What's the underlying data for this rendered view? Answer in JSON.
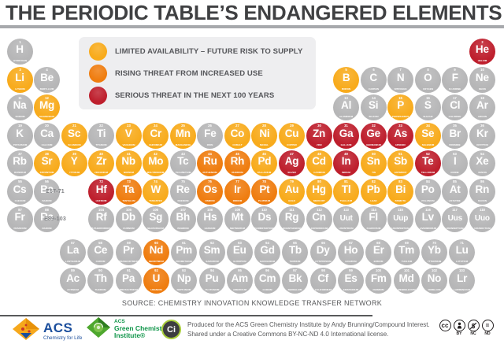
{
  "title": "THE PERIODIC TABLE’S ENDANGERED ELEMENTS",
  "legend": {
    "items": [
      {
        "key": "y",
        "label": "LIMITED AVAILABILITY – FUTURE RISK TO SUPPLY"
      },
      {
        "key": "o",
        "label": "RISING THREAT FROM INCREASED USE"
      },
      {
        "key": "r",
        "label": "SERIOUS THREAT IN THE NEXT 100 YEARS"
      }
    ]
  },
  "colors": {
    "g": "#b6b6b7",
    "y": "#f8ab1c",
    "o": "#ef7d10",
    "r": "#be1f2d"
  },
  "table": {
    "gap_labels": [
      {
        "text": "E57-71",
        "row": 6
      },
      {
        "text": "E89-103",
        "row": 7
      }
    ],
    "element_fields": [
      "symbol",
      "number",
      "name",
      "row",
      "col",
      "category"
    ],
    "elements": [
      [
        "H",
        1,
        "HYDROGEN",
        1,
        1,
        "g"
      ],
      [
        "He",
        2,
        "HELIUM",
        1,
        18,
        "r"
      ],
      [
        "Li",
        3,
        "LITHIUM",
        2,
        1,
        "y"
      ],
      [
        "Be",
        4,
        "BERYLLIUM",
        2,
        2,
        "g"
      ],
      [
        "B",
        5,
        "BORON",
        2,
        13,
        "y"
      ],
      [
        "C",
        6,
        "CARBON",
        2,
        14,
        "g"
      ],
      [
        "N",
        7,
        "NITROGEN",
        2,
        15,
        "g"
      ],
      [
        "O",
        8,
        "OXYGEN",
        2,
        16,
        "g"
      ],
      [
        "F",
        9,
        "FLUORINE",
        2,
        17,
        "g"
      ],
      [
        "Ne",
        10,
        "NEON",
        2,
        18,
        "g"
      ],
      [
        "Na",
        11,
        "SODIUM",
        3,
        1,
        "g"
      ],
      [
        "Mg",
        12,
        "MAGNESIUM",
        3,
        2,
        "y"
      ],
      [
        "Al",
        13,
        "ALUMINIUM",
        3,
        13,
        "g"
      ],
      [
        "Si",
        14,
        "SILICON",
        3,
        14,
        "g"
      ],
      [
        "P",
        15,
        "PHOSPHORUS",
        3,
        15,
        "y"
      ],
      [
        "S",
        16,
        "SULFUR",
        3,
        16,
        "g"
      ],
      [
        "Cl",
        17,
        "CHLORINE",
        3,
        17,
        "g"
      ],
      [
        "Ar",
        18,
        "ARGON",
        3,
        18,
        "g"
      ],
      [
        "K",
        19,
        "POTASSIUM",
        4,
        1,
        "g"
      ],
      [
        "Ca",
        20,
        "CALCIUM",
        4,
        2,
        "g"
      ],
      [
        "Sc",
        21,
        "SCANDIUM",
        4,
        3,
        "y"
      ],
      [
        "Ti",
        22,
        "TITANIUM",
        4,
        4,
        "g"
      ],
      [
        "V",
        23,
        "VANADIUM",
        4,
        5,
        "y"
      ],
      [
        "Cr",
        24,
        "CHROMIUM",
        4,
        6,
        "y"
      ],
      [
        "Mn",
        25,
        "MANGANESE",
        4,
        7,
        "y"
      ],
      [
        "Fe",
        26,
        "IRON",
        4,
        8,
        "g"
      ],
      [
        "Co",
        27,
        "COBALT",
        4,
        9,
        "y"
      ],
      [
        "Ni",
        28,
        "NICKEL",
        4,
        10,
        "y"
      ],
      [
        "Cu",
        29,
        "COPPER",
        4,
        11,
        "y"
      ],
      [
        "Zn",
        30,
        "ZINC",
        4,
        12,
        "r"
      ],
      [
        "Ga",
        31,
        "GALLIUM",
        4,
        13,
        "r"
      ],
      [
        "Ge",
        32,
        "GERMANIUM",
        4,
        14,
        "r"
      ],
      [
        "As",
        33,
        "ARSENIC",
        4,
        15,
        "r"
      ],
      [
        "Se",
        34,
        "SELENIUM",
        4,
        16,
        "y"
      ],
      [
        "Br",
        35,
        "BROMINE",
        4,
        17,
        "g"
      ],
      [
        "Kr",
        36,
        "KRYPTON",
        4,
        18,
        "g"
      ],
      [
        "Rb",
        37,
        "RUBIDIUM",
        5,
        1,
        "g"
      ],
      [
        "Sr",
        38,
        "STRONTIUM",
        5,
        2,
        "y"
      ],
      [
        "Y",
        39,
        "YTTRIUM",
        5,
        3,
        "y"
      ],
      [
        "Zr",
        40,
        "ZIRCONIUM",
        5,
        4,
        "y"
      ],
      [
        "Nb",
        41,
        "NIOBIUM",
        5,
        5,
        "y"
      ],
      [
        "Mo",
        42,
        "MOLYBDENUM",
        5,
        6,
        "y"
      ],
      [
        "Tc",
        43,
        "TECHNETIUM",
        5,
        7,
        "g"
      ],
      [
        "Ru",
        44,
        "RUTHENIUM",
        5,
        8,
        "o"
      ],
      [
        "Rh",
        45,
        "RHODIUM",
        5,
        9,
        "o"
      ],
      [
        "Pd",
        46,
        "PALLADIUM",
        5,
        10,
        "y"
      ],
      [
        "Ag",
        47,
        "SILVER",
        5,
        11,
        "r"
      ],
      [
        "Cd",
        48,
        "CADMIUM",
        5,
        12,
        "y"
      ],
      [
        "In",
        49,
        "INDIUM",
        5,
        13,
        "r"
      ],
      [
        "Sn",
        50,
        "TIN",
        5,
        14,
        "y"
      ],
      [
        "Sb",
        51,
        "ANTIMONY",
        5,
        15,
        "y"
      ],
      [
        "Te",
        52,
        "TELLURIUM",
        5,
        16,
        "r"
      ],
      [
        "I",
        53,
        "IODINE",
        5,
        17,
        "g"
      ],
      [
        "Xe",
        54,
        "XENON",
        5,
        18,
        "g"
      ],
      [
        "Cs",
        55,
        "CAESIUM",
        6,
        1,
        "g"
      ],
      [
        "Ba",
        56,
        "BARIUM",
        6,
        2,
        "g"
      ],
      [
        "Hf",
        72,
        "HAFNIUM",
        6,
        4,
        "r"
      ],
      [
        "Ta",
        73,
        "TANTALUM",
        6,
        5,
        "o"
      ],
      [
        "W",
        74,
        "TUNGSTEN",
        6,
        6,
        "y"
      ],
      [
        "Re",
        75,
        "RHENIUM",
        6,
        7,
        "g"
      ],
      [
        "Os",
        76,
        "OSMIUM",
        6,
        8,
        "o"
      ],
      [
        "Ir",
        77,
        "IRIDIUM",
        6,
        9,
        "o"
      ],
      [
        "Pt",
        78,
        "PLATINUM",
        6,
        10,
        "o"
      ],
      [
        "Au",
        79,
        "GOLD",
        6,
        11,
        "y"
      ],
      [
        "Hg",
        80,
        "MERCURY",
        6,
        12,
        "y"
      ],
      [
        "Tl",
        81,
        "THALLIUM",
        6,
        13,
        "y"
      ],
      [
        "Pb",
        82,
        "LEAD",
        6,
        14,
        "y"
      ],
      [
        "Bi",
        83,
        "BISMUTH",
        6,
        15,
        "y"
      ],
      [
        "Po",
        84,
        "POLONIUM",
        6,
        16,
        "g"
      ],
      [
        "At",
        85,
        "ASTATINE",
        6,
        17,
        "g"
      ],
      [
        "Rn",
        86,
        "RADON",
        6,
        18,
        "g"
      ],
      [
        "Fr",
        87,
        "FRANCIUM",
        7,
        1,
        "g"
      ],
      [
        "Ra",
        88,
        "RADIUM",
        7,
        2,
        "g"
      ],
      [
        "Rf",
        104,
        "RUTHERFORDIUM",
        7,
        4,
        "g"
      ],
      [
        "Db",
        105,
        "DUBNIUM",
        7,
        5,
        "g"
      ],
      [
        "Sg",
        106,
        "SEABORGIUM",
        7,
        6,
        "g"
      ],
      [
        "Bh",
        107,
        "BOHRIUM",
        7,
        7,
        "g"
      ],
      [
        "Hs",
        108,
        "HASSIUM",
        7,
        8,
        "g"
      ],
      [
        "Mt",
        109,
        "MEITNERIUM",
        7,
        9,
        "g"
      ],
      [
        "Ds",
        110,
        "DARMSTADTIUM",
        7,
        10,
        "g"
      ],
      [
        "Rg",
        111,
        "ROENTGENIUM",
        7,
        11,
        "g"
      ],
      [
        "Cn",
        112,
        "COPERNICIUM",
        7,
        12,
        "g"
      ],
      [
        "Uut",
        113,
        "UNUNTRIUM",
        7,
        13,
        "g"
      ],
      [
        "Fl",
        114,
        "FLEROVIUM",
        7,
        14,
        "g"
      ],
      [
        "Uup",
        115,
        "UNUNPENTIUM",
        7,
        15,
        "g"
      ],
      [
        "Lv",
        116,
        "LIVERMORIUM",
        7,
        16,
        "g"
      ],
      [
        "Uus",
        117,
        "UNUNSEPTIUM",
        7,
        17,
        "g"
      ],
      [
        "Uuo",
        118,
        "UNUNOCTIUM",
        7,
        18,
        "g"
      ],
      [
        "La",
        57,
        "LANTHANUM",
        8,
        1,
        "g"
      ],
      [
        "Ce",
        58,
        "CERIUM",
        8,
        2,
        "g"
      ],
      [
        "Pr",
        59,
        "PRASEODYMIUM",
        8,
        3,
        "g"
      ],
      [
        "Nd",
        60,
        "NEODYMIUM",
        8,
        4,
        "o"
      ],
      [
        "Pm",
        61,
        "PROMETHIUM",
        8,
        5,
        "g"
      ],
      [
        "Sm",
        62,
        "SAMARIUM",
        8,
        6,
        "g"
      ],
      [
        "Eu",
        63,
        "EUROPIUM",
        8,
        7,
        "g"
      ],
      [
        "Gd",
        64,
        "GADOLINIUM",
        8,
        8,
        "g"
      ],
      [
        "Tb",
        65,
        "TERBIUM",
        8,
        9,
        "g"
      ],
      [
        "Dy",
        66,
        "DYSPROSIUM",
        8,
        10,
        "g"
      ],
      [
        "Ho",
        67,
        "HOLMIUM",
        8,
        11,
        "g"
      ],
      [
        "Er",
        68,
        "ERBIUM",
        8,
        12,
        "g"
      ],
      [
        "Tm",
        69,
        "THULIUM",
        8,
        13,
        "g"
      ],
      [
        "Yb",
        70,
        "YTTERBIUM",
        8,
        14,
        "g"
      ],
      [
        "Lu",
        71,
        "LUTETIUM",
        8,
        15,
        "g"
      ],
      [
        "Ac",
        89,
        "ACTINIUM",
        9,
        1,
        "g"
      ],
      [
        "Th",
        90,
        "THORIUM",
        9,
        2,
        "g"
      ],
      [
        "Pa",
        91,
        "PROTACTINIUM",
        9,
        3,
        "g"
      ],
      [
        "U",
        92,
        "URANIUM",
        9,
        4,
        "o"
      ],
      [
        "Np",
        93,
        "NEPTUNIUM",
        9,
        5,
        "g"
      ],
      [
        "Pu",
        94,
        "PLUTONIUM",
        9,
        6,
        "g"
      ],
      [
        "Am",
        95,
        "AMERICIUM",
        9,
        7,
        "g"
      ],
      [
        "Cm",
        96,
        "CURIUM",
        9,
        8,
        "g"
      ],
      [
        "Bk",
        97,
        "BERKELIUM",
        9,
        9,
        "g"
      ],
      [
        "Cf",
        98,
        "CALIFORNIUM",
        9,
        10,
        "g"
      ],
      [
        "Es",
        99,
        "EINSTEINIUM",
        9,
        11,
        "g"
      ],
      [
        "Fm",
        100,
        "FERMIUM",
        9,
        12,
        "g"
      ],
      [
        "Md",
        101,
        "MENDELEVIUM",
        9,
        13,
        "g"
      ],
      [
        "No",
        102,
        "NOBELIUM",
        9,
        14,
        "g"
      ],
      [
        "Lr",
        103,
        "LAWRENCIUM",
        9,
        15,
        "g"
      ]
    ]
  },
  "source": {
    "text": "SOURCE: CHEMISTRY INNOVATION KNOWLEDGE TRANSFER NETWORK"
  },
  "footer": {
    "acs": {
      "name": "ACS",
      "tagline": "Chemistry for Life"
    },
    "gci": {
      "line1": "ACS",
      "line2": "Green Chemistry",
      "line3": "Institute®"
    },
    "ci": {
      "label": "Ci"
    },
    "produced_line1": "Produced for the ACS Green Chemistry Institute by Andy Brunning/Compound Interest.",
    "produced_line2": "Shared under a Creative Commons BY-NC-ND 4.0 International license.",
    "cc_labels": {
      "by": "BY",
      "nc": "NC",
      "nd": "ND"
    },
    "cc_text": "cc"
  }
}
